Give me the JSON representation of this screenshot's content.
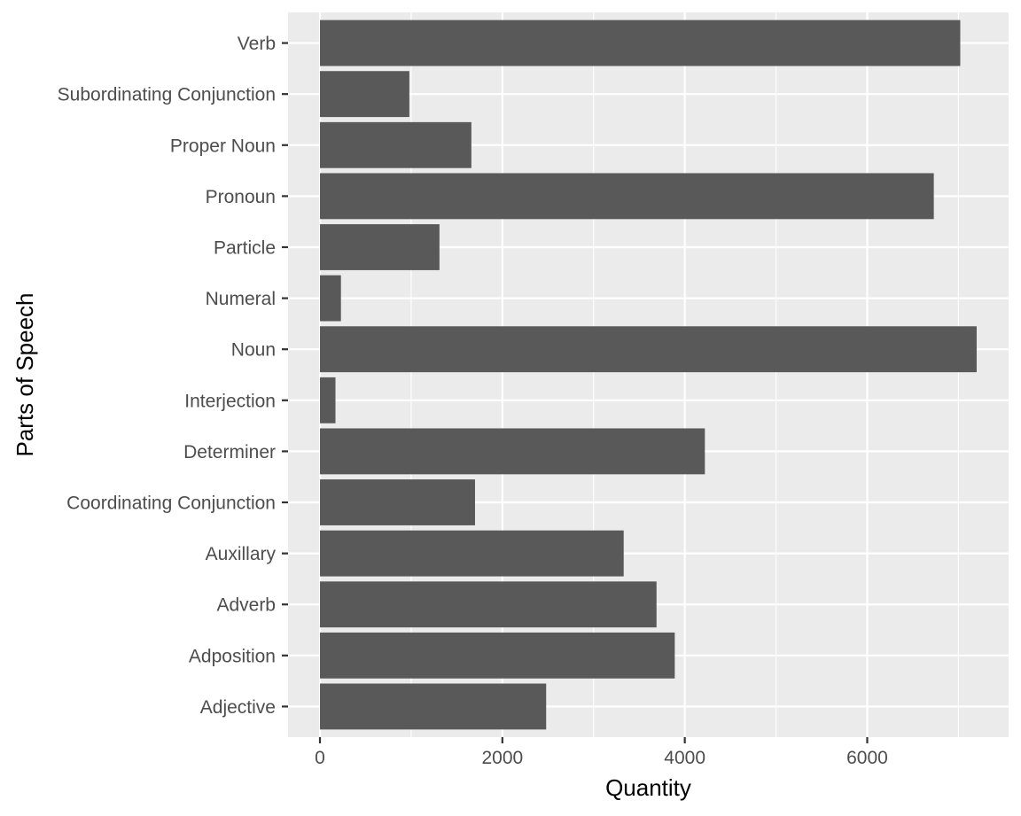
{
  "chart_data": {
    "type": "bar",
    "orientation": "horizontal",
    "categories": [
      "Adjective",
      "Adposition",
      "Adverb",
      "Auxillary",
      "Coordinating Conjunction",
      "Determiner",
      "Interjection",
      "Noun",
      "Numeral",
      "Particle",
      "Pronoun",
      "Proper Noun",
      "Subordinating Conjunction",
      "Verb"
    ],
    "values": [
      2480,
      3890,
      3690,
      3330,
      1700,
      4220,
      170,
      7200,
      230,
      1310,
      6730,
      1660,
      980,
      7020
    ],
    "xlabel": "Quantity",
    "ylabel": "Parts of Speech",
    "xlim": [
      -350,
      7550
    ],
    "xticks": [
      0,
      2000,
      4000,
      6000
    ],
    "xtick_labels": [
      "0",
      "2000",
      "4000",
      "6000"
    ],
    "grid": true,
    "colors": {
      "bar": "#595959",
      "panel": "#ebebeb",
      "grid": "#ffffff",
      "tick_text": "#4d4d4d",
      "axis_title": "#000000"
    }
  }
}
